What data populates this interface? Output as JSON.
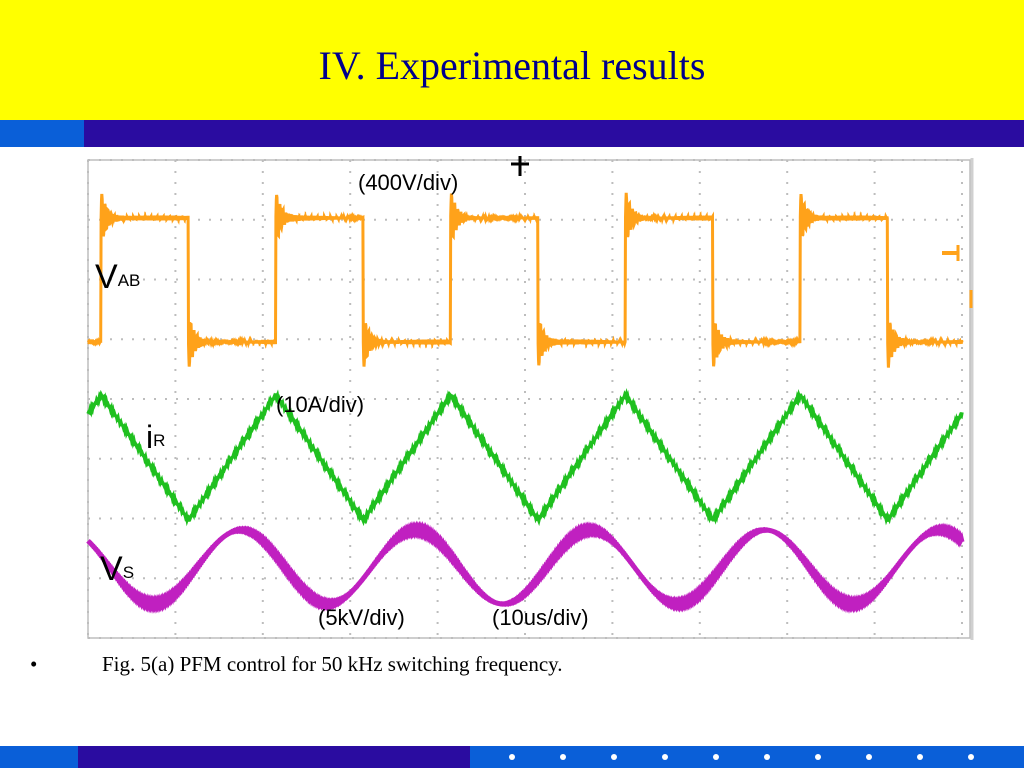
{
  "slide": {
    "title": "IV. Experimental results",
    "bullet": "•",
    "caption": "Fig. 5(a)  PFM control for 50 kHz switching frequency."
  },
  "colors": {
    "title_bg": "#ffff00",
    "title_text": "#00008b",
    "band_light": "#0a5fd8",
    "band_dark": "#2a0ca0",
    "vab": "#ffa21a",
    "ir": "#1fc01f",
    "vs": "#c020c0",
    "grid": "#bdbdbd"
  },
  "chart_data": {
    "type": "line",
    "subtype": "oscilloscope",
    "title": "",
    "xlabel": "",
    "ylabel": "",
    "grid": true,
    "horizontal_scale": "(10us/div)",
    "x_divisions": 10,
    "x_unit": "us",
    "xlim": [
      0,
      100
    ],
    "switching_frequency_khz": 50,
    "series": [
      {
        "name": "VAB",
        "label_main": "V",
        "label_sub": "AB",
        "scale": "(400V/div)",
        "waveform": "square",
        "period_us": 20,
        "phase_us": 1.5,
        "duty": 0.5,
        "color_key": "vab"
      },
      {
        "name": "iR",
        "label_main": "i",
        "label_sub": "R",
        "scale": "(10A/div)",
        "waveform": "triangle",
        "period_us": 20,
        "phase_us": 1.5,
        "color_key": "ir"
      },
      {
        "name": "Vs",
        "label_main": "V",
        "label_sub": "S",
        "scale": "(5kV/div)",
        "waveform": "sine",
        "period_us": 20,
        "phase_us": -2.5,
        "color_key": "vs"
      }
    ]
  }
}
